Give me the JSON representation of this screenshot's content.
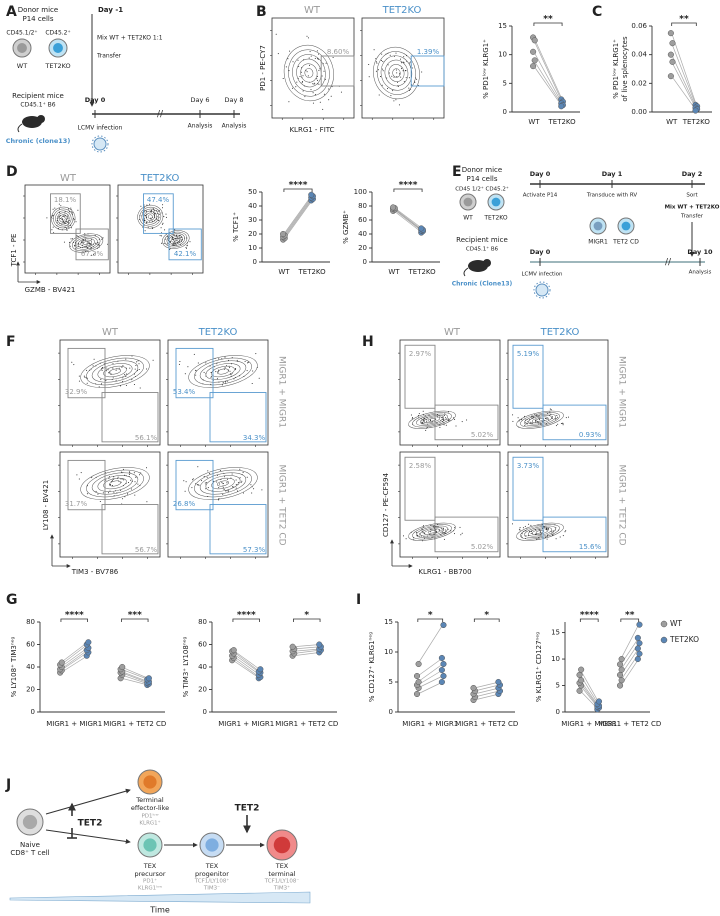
{
  "figure": {
    "A": {
      "letter": "A",
      "donor": "Donor mice",
      "cells": "P14 cells",
      "cd_wt": "CD45.1/2⁺",
      "cd_ko": "CD45.2⁺",
      "wt": "WT",
      "ko": "TET2KO",
      "day_m1": "Day -1",
      "mix": "Mix WT + TET2KO 1:1",
      "transfer": "Transfer",
      "recipient": "Recipient mice",
      "recipient_strain": "CD45.1⁺ B6",
      "chronic": "Chronic (clone13)",
      "day0": "Day 0",
      "day6": "Day 6",
      "day8": "Day 8",
      "lcmv": "LCMV infection",
      "analysis6": "Analysis",
      "analysis8": "Analysis"
    },
    "B": {
      "letter": "B",
      "wt": "WT",
      "ko": "TET2KO",
      "gate_wt": "8.60%",
      "gate_ko": "1.39%",
      "ylabel": "PD1 - PE-CY7",
      "xlabel": "KLRG1 - FITC"
    },
    "C": {
      "letter": "C"
    },
    "D": {
      "letter": "D",
      "wt": "WT",
      "ko": "TET2KO",
      "wt_up": "18.1%",
      "wt_low": "67.3%",
      "ko_up": "47.4%",
      "ko_low": "42.1%",
      "ylabel": "TCF1 - PE",
      "xlabel": "GZMB - BV421"
    },
    "E": {
      "letter": "E",
      "donor": "Donor mice",
      "cells": "P14 cells",
      "cd": "CD45 1/2⁺ CD45.2⁺",
      "wt": "WT",
      "ko": "TET2KO",
      "day0": "Day 0",
      "day1": "Day 1",
      "day2": "Day 2",
      "activate": "Activate P14",
      "transduce": "Transduce with RV",
      "sort": "Sort",
      "migr1": "MIGR1",
      "tet2cd": "TET2 CD",
      "mix": "Mix WT + TET2KO",
      "transfer": "Transfer",
      "recipient": "Recipient mice",
      "recipient_strain": "CD45.1⁺ B6",
      "chronic": "Chronic (Clone13)",
      "day0b": "Day 0",
      "day10": "Day 10",
      "lcmv": "LCMV infection",
      "analysis": "Analysis"
    },
    "F": {
      "letter": "F",
      "wt": "WT",
      "ko": "TET2KO",
      "g1_wt_up": "32.9%",
      "g1_wt_low": "56.1%",
      "g1_ko_up": "53.4%",
      "g1_ko_low": "34.3%",
      "g2_wt_up": "31.7%",
      "g2_wt_low": "56.7%",
      "g2_ko_up": "26.8%",
      "g2_ko_low": "57.3%",
      "row1": "MIGR1 + MIGR1",
      "row2": "MIGR1 + TET2 CD",
      "ylabel": "LY108 - BV421",
      "xlabel": "TIM3 - BV786"
    },
    "H": {
      "letter": "H",
      "wt": "WT",
      "ko": "TET2KO",
      "g1_wt_up": "2.97%",
      "g1_wt_low": "5.02%",
      "g1_ko_up": "5.19%",
      "g1_ko_low": "0.93%",
      "g2_wt_up": "2.58%",
      "g2_wt_low": "5.02%",
      "g2_ko_up": "3.73%",
      "g2_ko_low": "15.6%",
      "row1": "MIGR1 + MIGR1",
      "row2": "MIGR1 + TET2 CD",
      "ylabel": "CD127 - PE-CF594",
      "xlabel": "KLRG1 - BB700"
    },
    "G": {
      "letter": "G"
    },
    "I": {
      "letter": "I"
    },
    "J": {
      "letter": "J",
      "naive": "Naive",
      "naive2": "CD8⁺ T cell",
      "tet2_a": "TET2",
      "eff": "Terminal",
      "eff2": "effector-like",
      "eff_m": "PD1ˡᵒʷ",
      "eff_m2": "KLRG1⁺",
      "pre": "TEX",
      "pre2": "precursor",
      "pre_m": "PD1⁺",
      "pre_m2": "KLRG1ˡᵒʷ",
      "prog": "TEX",
      "prog2": "progenitor",
      "prog_m": "TCF1/LY108⁺",
      "prog_m2": "TIM3⁻",
      "term": "TEX",
      "term2": "terminal",
      "term_m": "TCF1/LY108⁻",
      "term_m2": "TIM3⁺",
      "tet2_b": "TET2",
      "time": "Time"
    }
  },
  "chart_data": [
    {
      "type": "paired",
      "ylabel": "% PD1ˡᵒʷ KLRG1⁺",
      "categories": [
        "WT",
        "TET2KO"
      ],
      "groups": [
        null
      ],
      "significance": [
        "**"
      ],
      "ylim": [
        0,
        15
      ],
      "yticks": [
        0,
        5,
        10,
        15
      ],
      "series": [
        {
          "color": "#9e9e9e",
          "values": [
            [
              13,
              12.5,
              10.5,
              9,
              8
            ]
          ]
        },
        {
          "color": "#5b86b5",
          "values": [
            [
              2.2,
              1.8,
              1.5,
              1.2,
              1.0
            ]
          ]
        }
      ]
    },
    {
      "type": "paired",
      "ylabel": [
        "% PD1ˡᵒʷ KLRG1⁺",
        "of live splenocytes"
      ],
      "categories": [
        "WT",
        "TET2KO"
      ],
      "groups": [
        null
      ],
      "significance": [
        "**"
      ],
      "ylim": [
        0,
        0.06
      ],
      "yticks": [
        {
          "value": 0,
          "label": "0.00"
        },
        0.02,
        0.04,
        0.06
      ],
      "series": [
        {
          "color": "#9e9e9e",
          "values": [
            [
              0.055,
              0.048,
              0.04,
              0.035,
              0.025
            ]
          ]
        },
        {
          "color": "#5b86b5",
          "values": [
            [
              0.005,
              0.004,
              0.003,
              0.002,
              0.001
            ]
          ]
        }
      ]
    },
    {
      "type": "paired",
      "ylabel": "% TCF1⁺",
      "categories": [
        "WT",
        "TET2KO"
      ],
      "groups": [
        null
      ],
      "significance": [
        "****"
      ],
      "ylim": [
        0,
        50
      ],
      "yticks": [
        0,
        10,
        20,
        30,
        40,
        50
      ],
      "series": [
        {
          "color": "#9e9e9e",
          "values": [
            [
              16,
              17,
              18,
              19,
              20
            ]
          ]
        },
        {
          "color": "#5b86b5",
          "values": [
            [
              44,
              45,
              46,
              47,
              48
            ]
          ]
        }
      ]
    },
    {
      "type": "paired",
      "ylabel": "% GZMB⁺",
      "categories": [
        "WT",
        "TET2KO"
      ],
      "groups": [
        null
      ],
      "significance": [
        "****"
      ],
      "ylim": [
        0,
        100
      ],
      "yticks": [
        0,
        20,
        40,
        60,
        80,
        100
      ],
      "series": [
        {
          "color": "#9e9e9e",
          "values": [
            [
              73,
              75,
              76,
              77,
              78
            ]
          ]
        },
        {
          "color": "#5b86b5",
          "values": [
            [
              42,
              44,
              45,
              46,
              48
            ]
          ]
        }
      ]
    },
    {
      "type": "paired",
      "ylabel": "% LY108⁺ TIM3ⁿᵉᵍ",
      "groups": [
        "MIGR1 + MIGR1",
        "MIGR1 + TET2 CD"
      ],
      "significance": [
        "****",
        "***"
      ],
      "ylim": [
        0,
        80
      ],
      "yticks": [
        0,
        20,
        40,
        60,
        80
      ],
      "series": [
        {
          "color": "#9e9e9e",
          "values": [
            [
              35,
              37,
              38,
              40,
              42,
              44
            ],
            [
              30,
              33,
              35,
              36,
              38,
              40
            ]
          ]
        },
        {
          "color": "#5b86b5",
          "values": [
            [
              50,
              53,
              55,
              57,
              60,
              62
            ],
            [
              24,
              25,
              26,
              27,
              29,
              30
            ]
          ]
        }
      ]
    },
    {
      "type": "paired",
      "ylabel": "% TIM3⁺ LY108ⁿᵉᵍ",
      "groups": [
        "MIGR1 + MIGR1",
        "MIGR1 + TET2 CD"
      ],
      "significance": [
        "****",
        "*"
      ],
      "ylim": [
        0,
        80
      ],
      "yticks": [
        0,
        20,
        40,
        60,
        80
      ],
      "series": [
        {
          "color": "#9e9e9e",
          "values": [
            [
              46,
              48,
              50,
              52,
              54,
              55
            ],
            [
              50,
              52,
              54,
              56,
              58
            ]
          ]
        },
        {
          "color": "#5b86b5",
          "values": [
            [
              30,
              31,
              33,
              35,
              36,
              38
            ],
            [
              53,
              55,
              56,
              58,
              60
            ]
          ]
        }
      ]
    },
    {
      "type": "paired",
      "ylabel": "% CD127⁺ KLRG1ⁿᵉᵍ",
      "groups": [
        "MIGR1 + MIGR1",
        "MIGR1 + TET2 CD"
      ],
      "significance": [
        "*",
        "*"
      ],
      "ylim": [
        0,
        15
      ],
      "yticks": [
        0,
        5,
        10,
        15
      ],
      "series": [
        {
          "color": "#9e9e9e",
          "values": [
            [
              3,
              4,
              4.5,
              5,
              6,
              8
            ],
            [
              2,
              2.5,
              3,
              3.5,
              4
            ]
          ]
        },
        {
          "color": "#5b86b5",
          "values": [
            [
              5,
              6,
              7,
              8,
              9,
              14.5
            ],
            [
              3,
              3.5,
              4,
              4.5,
              5
            ]
          ]
        }
      ]
    },
    {
      "type": "paired",
      "ylabel": "% KLRG1⁺ CD127ⁿᵉᵍ",
      "groups": [
        "MIGR1 + MIGR1",
        "MIGR1 + TET2 CD"
      ],
      "significance": [
        "****",
        "**"
      ],
      "ylim": [
        0,
        17
      ],
      "yticks": [
        0,
        5,
        10,
        15
      ],
      "legend": "upper right",
      "series": [
        {
          "name": "WT",
          "color": "#9e9e9e",
          "values": [
            [
              4,
              5,
              5.5,
              6,
              7,
              8
            ],
            [
              5,
              6,
              7,
              8,
              9,
              10
            ]
          ]
        },
        {
          "name": "TET2KO",
          "color": "#5b86b5",
          "values": [
            [
              0.5,
              0.8,
              1,
              1.2,
              1.5,
              2
            ],
            [
              10,
              11,
              12,
              13,
              14,
              16.5
            ]
          ]
        }
      ]
    }
  ]
}
